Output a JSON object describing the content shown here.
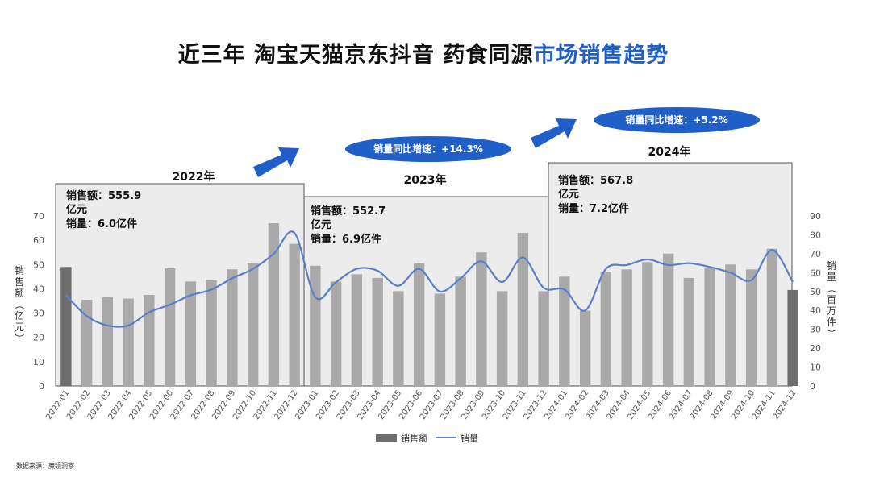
{
  "title": {
    "prefix": "近三年 淘宝天猫京东抖音 药食同源",
    "highlight": "市场销售趋势"
  },
  "source": "数据来源：魔镜洞察",
  "colors": {
    "accent": "#1f5fc7",
    "bar": "#a9a9a9",
    "bar_edge": "#6e6e6e",
    "line": "#5b7fc7",
    "panel_bg": "#ececec"
  },
  "panels": [
    {
      "year": "2022年",
      "sales_label": "销售额：",
      "sales_value": "555.9",
      "sales_unit": "亿元",
      "volume_label": "销量：",
      "volume_value": "6.0亿件"
    },
    {
      "year": "2023年",
      "sales_label": "销售额：",
      "sales_value": "552.7",
      "sales_unit": "亿元",
      "volume_label": "销量：",
      "volume_value": "6.9亿件"
    },
    {
      "year": "2024年",
      "sales_label": "销售额：",
      "sales_value": "567.8",
      "sales_unit": "亿元",
      "volume_label": "销量：",
      "volume_value": "7.2亿件"
    }
  ],
  "growth": [
    {
      "text": "销量同比增速：+14.3%"
    },
    {
      "text": "销量同比增速：+5.2%"
    }
  ],
  "chart_data": {
    "type": "bar",
    "x": [
      "2022-01",
      "2022-02",
      "2022-03",
      "2022-04",
      "2022-05",
      "2022-06",
      "2022-07",
      "2022-08",
      "2022-09",
      "2022-10",
      "2022-11",
      "2022-12",
      "2023-01",
      "2023-02",
      "2023-03",
      "2023-04",
      "2023-05",
      "2023-06",
      "2023-07",
      "2023-08",
      "2023-09",
      "2023-10",
      "2023-11",
      "2023-12",
      "2024-01",
      "2024-02",
      "2024-03",
      "2024-04",
      "2024-05",
      "2024-06",
      "2024-07",
      "2024-08",
      "2024-09",
      "2024-10",
      "2024-11",
      "2024-12"
    ],
    "series": [
      {
        "name": "销售额",
        "type": "bar",
        "axis": "left",
        "values": [
          49,
          35.5,
          36.5,
          36,
          37.5,
          48.5,
          43,
          43.5,
          48,
          50.5,
          67,
          58.5,
          49.5,
          43,
          46,
          44.5,
          39,
          50.5,
          38,
          45,
          55,
          39,
          63,
          39,
          45,
          31,
          47,
          48,
          51,
          54.5,
          44.5,
          48.5,
          50,
          48,
          56.5,
          39.5
        ]
      },
      {
        "name": "销量",
        "type": "line",
        "axis": "right",
        "values": [
          48,
          37,
          32,
          32,
          39,
          43,
          48,
          51,
          57,
          62,
          70,
          81,
          47,
          55,
          62,
          61,
          53,
          62,
          50,
          57,
          66,
          55,
          68,
          52,
          51,
          40,
          62,
          64,
          67,
          64,
          65,
          63,
          60,
          56,
          72,
          55
        ]
      }
    ],
    "y_left": {
      "label": "销售额（亿元）",
      "ticks": [
        0,
        10,
        20,
        30,
        40,
        50,
        60,
        70
      ],
      "range": [
        0,
        70
      ]
    },
    "y_right": {
      "label": "销量（百万件）",
      "ticks": [
        0,
        10,
        20,
        30,
        40,
        50,
        60,
        70,
        80,
        90
      ],
      "range": [
        0,
        90
      ]
    },
    "legend": {
      "position": "bottom",
      "items": [
        "销售额",
        "销量"
      ]
    },
    "grid": false
  }
}
